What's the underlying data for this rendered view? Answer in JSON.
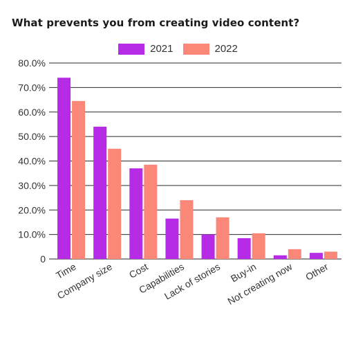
{
  "chart_data": {
    "type": "bar",
    "title": "What prevents you from creating video content?",
    "categories": [
      "Time",
      "Company size",
      "Cost",
      "Capabilities",
      "Lack of stories",
      "Buy-in",
      "Not creating now",
      "Other"
    ],
    "series": [
      {
        "name": "2021",
        "color": "#b62be6",
        "values": [
          74,
          54,
          37,
          16.5,
          10,
          8.5,
          1.5,
          2.5
        ]
      },
      {
        "name": "2022",
        "color": "#fa8778",
        "values": [
          64.5,
          45,
          38.5,
          24,
          17,
          10.5,
          4,
          3
        ]
      }
    ],
    "yticks": [
      "0",
      "10.0%",
      "20.0%",
      "30.0%",
      "40.0%",
      "50.0%",
      "60.0%",
      "70.0%",
      "80.0%"
    ],
    "ylim": [
      0,
      80
    ],
    "grid": true,
    "legend_position": "top"
  }
}
